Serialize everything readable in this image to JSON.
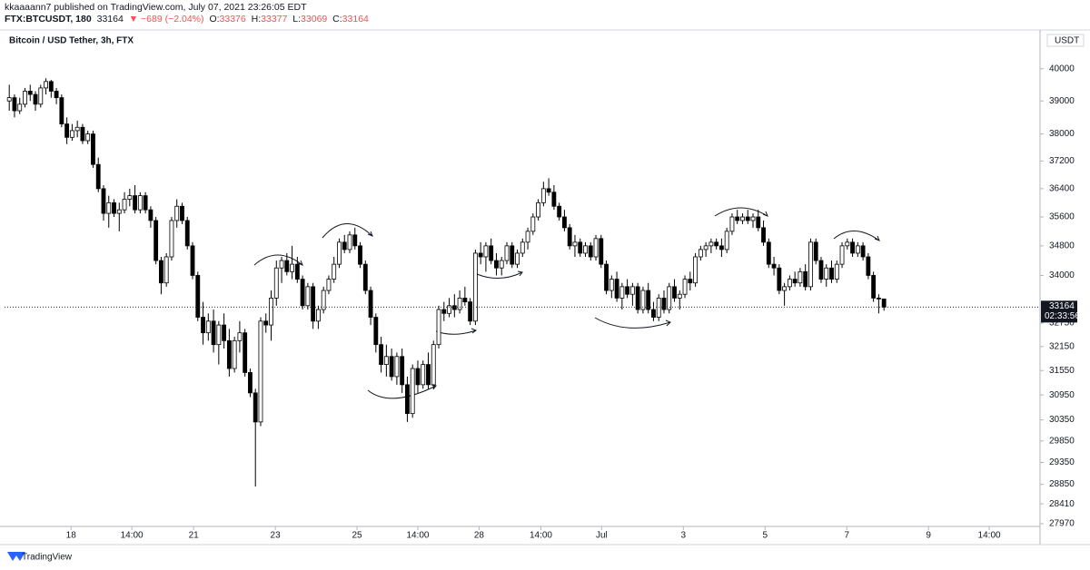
{
  "header": {
    "author_line": "kkaaaann7 published on TradingView.com, July 07, 2021 23:26:05 EDT",
    "symbol": "FTX:BTCUSDT, 180",
    "change": "▼ −689 (−2.04%)",
    "ohlc_labels": [
      "O:",
      "H:",
      "L:",
      "C:"
    ],
    "countdown": "02:33:56",
    "brand": "TradingView"
  },
  "chart_data": {
    "type": "candlestick",
    "title": "Bitcoin / USD Tether, 3h, FTX",
    "currency": "USDT",
    "log_scale": true,
    "grid": false,
    "up_color": "#ffffff",
    "down_color": "#000000",
    "ylim": [
      27910,
      41180
    ],
    "yticks": [
      27970,
      28410,
      28850,
      29350,
      29850,
      30350,
      30950,
      31550,
      32150,
      32750,
      34000,
      34800,
      35600,
      36400,
      37200,
      38000,
      39000,
      40000
    ],
    "xlim": [
      -0.9,
      196.8
    ],
    "xticks": [
      {
        "value": 11.8,
        "label": "18"
      },
      {
        "value": 23.4,
        "label": "14:00"
      },
      {
        "value": 35.2,
        "label": "21"
      },
      {
        "value": 50.8,
        "label": "23"
      },
      {
        "value": 66.4,
        "label": "25"
      },
      {
        "value": 78.0,
        "label": "14:00"
      },
      {
        "value": 89.7,
        "label": "28"
      },
      {
        "value": 101.5,
        "label": "14:00"
      },
      {
        "value": 113.1,
        "label": "Jul"
      },
      {
        "value": 128.7,
        "label": "3"
      },
      {
        "value": 144.3,
        "label": "5"
      },
      {
        "value": 159.9,
        "label": "7"
      },
      {
        "value": 175.5,
        "label": "9"
      },
      {
        "value": 187.1,
        "label": "14:00"
      }
    ],
    "candles": [
      [
        39000,
        39500,
        38700,
        39100
      ],
      [
        39100,
        39200,
        38500,
        38700
      ],
      [
        38700,
        39100,
        38600,
        38900
      ],
      [
        38900,
        39400,
        38800,
        39300
      ],
      [
        39300,
        39500,
        39000,
        39200
      ],
      [
        39200,
        39300,
        38700,
        38900
      ],
      [
        38900,
        39500,
        38800,
        39400
      ],
      [
        39400,
        39700,
        39200,
        39600
      ],
      [
        39600,
        39650,
        39100,
        39300
      ],
      [
        39300,
        39400,
        38900,
        39100
      ],
      [
        39100,
        39200,
        38200,
        38300
      ],
      [
        38300,
        38500,
        37700,
        37900
      ],
      [
        37900,
        38300,
        37800,
        38100
      ],
      [
        38100,
        38400,
        37900,
        38200
      ],
      [
        38200,
        38300,
        37700,
        37800
      ],
      [
        37800,
        38100,
        37700,
        38000
      ],
      [
        38000,
        38100,
        37000,
        37100
      ],
      [
        37100,
        37300,
        36300,
        36400
      ],
      [
        36400,
        36500,
        35500,
        35700
      ],
      [
        35700,
        36200,
        35300,
        36000
      ],
      [
        36000,
        36100,
        35600,
        35700
      ],
      [
        35700,
        36000,
        35200,
        35800
      ],
      [
        35800,
        36300,
        35700,
        36100
      ],
      [
        36100,
        36400,
        35900,
        36200
      ],
      [
        36200,
        36500,
        35700,
        35800
      ],
      [
        35800,
        36300,
        35700,
        36200
      ],
      [
        36200,
        36300,
        35700,
        35800
      ],
      [
        35800,
        35900,
        35300,
        35500
      ],
      [
        35500,
        35600,
        34300,
        34400
      ],
      [
        34400,
        34500,
        33500,
        33800
      ],
      [
        33800,
        34600,
        33700,
        34500
      ],
      [
        34500,
        35600,
        34400,
        35500
      ],
      [
        35500,
        36100,
        35300,
        35900
      ],
      [
        35900,
        36000,
        35400,
        35500
      ],
      [
        35500,
        35600,
        34700,
        34800
      ],
      [
        34800,
        34900,
        33900,
        34000
      ],
      [
        34000,
        34100,
        32800,
        32900
      ],
      [
        32900,
        33300,
        32200,
        32500
      ],
      [
        32500,
        33000,
        32300,
        32800
      ],
      [
        32800,
        33100,
        32000,
        32200
      ],
      [
        32200,
        32800,
        31700,
        32700
      ],
      [
        32700,
        33000,
        32100,
        32300
      ],
      [
        32300,
        32600,
        31400,
        31600
      ],
      [
        31600,
        32400,
        31500,
        32300
      ],
      [
        32300,
        32800,
        32000,
        32500
      ],
      [
        32500,
        32600,
        31400,
        31500
      ],
      [
        31500,
        31600,
        30900,
        31000
      ],
      [
        31000,
        31100,
        28800,
        30300
      ],
      [
        30300,
        32900,
        30200,
        32800
      ],
      [
        32800,
        33000,
        32500,
        32700
      ],
      [
        32700,
        33600,
        32300,
        33400
      ],
      [
        33400,
        34400,
        33200,
        34200
      ],
      [
        34200,
        34500,
        33800,
        34400
      ],
      [
        34400,
        34600,
        34000,
        34100
      ],
      [
        34100,
        34800,
        33900,
        34300
      ],
      [
        34300,
        34500,
        33800,
        33900
      ],
      [
        33900,
        34000,
        33100,
        33200
      ],
      [
        33200,
        33800,
        33100,
        33700
      ],
      [
        33700,
        33800,
        32600,
        32800
      ],
      [
        32800,
        33200,
        32600,
        33100
      ],
      [
        33100,
        33700,
        33000,
        33600
      ],
      [
        33600,
        34000,
        33500,
        33900
      ],
      [
        33900,
        34500,
        33800,
        34300
      ],
      [
        34300,
        35000,
        34200,
        34900
      ],
      [
        34900,
        35100,
        34600,
        34700
      ],
      [
        34700,
        35200,
        34600,
        35100
      ],
      [
        35100,
        35300,
        34700,
        34800
      ],
      [
        34800,
        34900,
        34200,
        34300
      ],
      [
        34300,
        34400,
        33500,
        33600
      ],
      [
        33600,
        33700,
        32700,
        32900
      ],
      [
        32900,
        33000,
        32000,
        32200
      ],
      [
        32200,
        32400,
        31500,
        31700
      ],
      [
        31700,
        32200,
        31400,
        31900
      ],
      [
        31900,
        32100,
        31300,
        31400
      ],
      [
        31400,
        32000,
        31200,
        31900
      ],
      [
        31900,
        32100,
        31000,
        31200
      ],
      [
        31200,
        31400,
        30300,
        30500
      ],
      [
        30500,
        31700,
        30400,
        31600
      ],
      [
        31600,
        31800,
        31000,
        31200
      ],
      [
        31200,
        31800,
        31100,
        31700
      ],
      [
        31700,
        32000,
        31100,
        31200
      ],
      [
        31200,
        32300,
        31100,
        32200
      ],
      [
        32200,
        33200,
        32100,
        33100
      ],
      [
        33100,
        33300,
        32800,
        33000
      ],
      [
        33000,
        33400,
        32900,
        33200
      ],
      [
        33200,
        33500,
        32900,
        33100
      ],
      [
        33100,
        33600,
        33000,
        33400
      ],
      [
        33400,
        33700,
        33200,
        33300
      ],
      [
        33300,
        33400,
        32700,
        32800
      ],
      [
        32800,
        34700,
        32700,
        34600
      ],
      [
        34600,
        34900,
        34300,
        34500
      ],
      [
        34500,
        34900,
        34100,
        34800
      ],
      [
        34800,
        35000,
        34300,
        34400
      ],
      [
        34400,
        34600,
        34000,
        34200
      ],
      [
        34200,
        34500,
        34000,
        34400
      ],
      [
        34400,
        34900,
        34300,
        34800
      ],
      [
        34800,
        34900,
        34200,
        34300
      ],
      [
        34300,
        34700,
        34200,
        34600
      ],
      [
        34600,
        35000,
        34500,
        34900
      ],
      [
        34900,
        35300,
        34700,
        35200
      ],
      [
        35200,
        35700,
        35100,
        35600
      ],
      [
        35600,
        36100,
        35500,
        36000
      ],
      [
        36000,
        36600,
        35900,
        36400
      ],
      [
        36400,
        36700,
        36200,
        36300
      ],
      [
        36300,
        36500,
        35800,
        35900
      ],
      [
        35900,
        36000,
        35500,
        35600
      ],
      [
        35600,
        35800,
        35200,
        35300
      ],
      [
        35300,
        35400,
        34700,
        34800
      ],
      [
        34800,
        35100,
        34500,
        34900
      ],
      [
        34900,
        35000,
        34500,
        34600
      ],
      [
        34600,
        34900,
        34500,
        34800
      ],
      [
        34800,
        34900,
        34400,
        34500
      ],
      [
        34500,
        35100,
        34400,
        35000
      ],
      [
        35000,
        35100,
        34200,
        34300
      ],
      [
        34300,
        34400,
        33500,
        33600
      ],
      [
        33600,
        34000,
        33400,
        33900
      ],
      [
        33900,
        34100,
        33300,
        33400
      ],
      [
        33400,
        33800,
        33100,
        33700
      ],
      [
        33700,
        33900,
        33400,
        33500
      ],
      [
        33500,
        33800,
        33200,
        33700
      ],
      [
        33700,
        33800,
        33000,
        33100
      ],
      [
        33100,
        33700,
        33000,
        33600
      ],
      [
        33600,
        33800,
        33000,
        33100
      ],
      [
        33100,
        33300,
        32800,
        32900
      ],
      [
        32900,
        33500,
        32800,
        33400
      ],
      [
        33400,
        33600,
        33000,
        33100
      ],
      [
        33100,
        33800,
        33000,
        33700
      ],
      [
        33700,
        33900,
        33300,
        33400
      ],
      [
        33400,
        33600,
        33100,
        33500
      ],
      [
        33500,
        34000,
        33400,
        33900
      ],
      [
        33900,
        34100,
        33600,
        33800
      ],
      [
        33800,
        34600,
        33700,
        34500
      ],
      [
        34500,
        34800,
        34400,
        34700
      ],
      [
        34700,
        34900,
        34500,
        34800
      ],
      [
        34800,
        35000,
        34600,
        34900
      ],
      [
        34900,
        35000,
        34700,
        34800
      ],
      [
        34800,
        35000,
        34500,
        34700
      ],
      [
        34700,
        35300,
        34600,
        35200
      ],
      [
        35200,
        35700,
        35100,
        35600
      ],
      [
        35600,
        35800,
        35400,
        35500
      ],
      [
        35500,
        35700,
        35400,
        35600
      ],
      [
        35600,
        35800,
        35400,
        35500
      ],
      [
        35500,
        35700,
        35300,
        35600
      ],
      [
        35600,
        35800,
        35200,
        35300
      ],
      [
        35300,
        35500,
        34800,
        34900
      ],
      [
        34900,
        35000,
        34200,
        34300
      ],
      [
        34300,
        34500,
        34000,
        34200
      ],
      [
        34200,
        34300,
        33500,
        33600
      ],
      [
        33600,
        33800,
        33200,
        33700
      ],
      [
        33700,
        34000,
        33600,
        33900
      ],
      [
        33900,
        34100,
        33700,
        33800
      ],
      [
        33800,
        34200,
        33700,
        34100
      ],
      [
        34100,
        34300,
        33600,
        33700
      ],
      [
        33700,
        35000,
        33600,
        34900
      ],
      [
        34900,
        35000,
        34300,
        34400
      ],
      [
        34400,
        34500,
        33800,
        33900
      ],
      [
        33900,
        34300,
        33700,
        34200
      ],
      [
        34200,
        34400,
        33800,
        33900
      ],
      [
        33900,
        34400,
        33800,
        34300
      ],
      [
        34300,
        34900,
        34200,
        34800
      ],
      [
        34800,
        35000,
        34700,
        34900
      ],
      [
        34900,
        35000,
        34500,
        34600
      ],
      [
        34600,
        34900,
        34500,
        34800
      ],
      [
        34800,
        34900,
        34400,
        34500
      ],
      [
        34500,
        34600,
        33900,
        34000
      ],
      [
        34000,
        34100,
        33300,
        33400
      ],
      [
        33400,
        33500,
        33000,
        33376
      ],
      [
        33376,
        33377,
        33069,
        33164
      ]
    ]
  }
}
